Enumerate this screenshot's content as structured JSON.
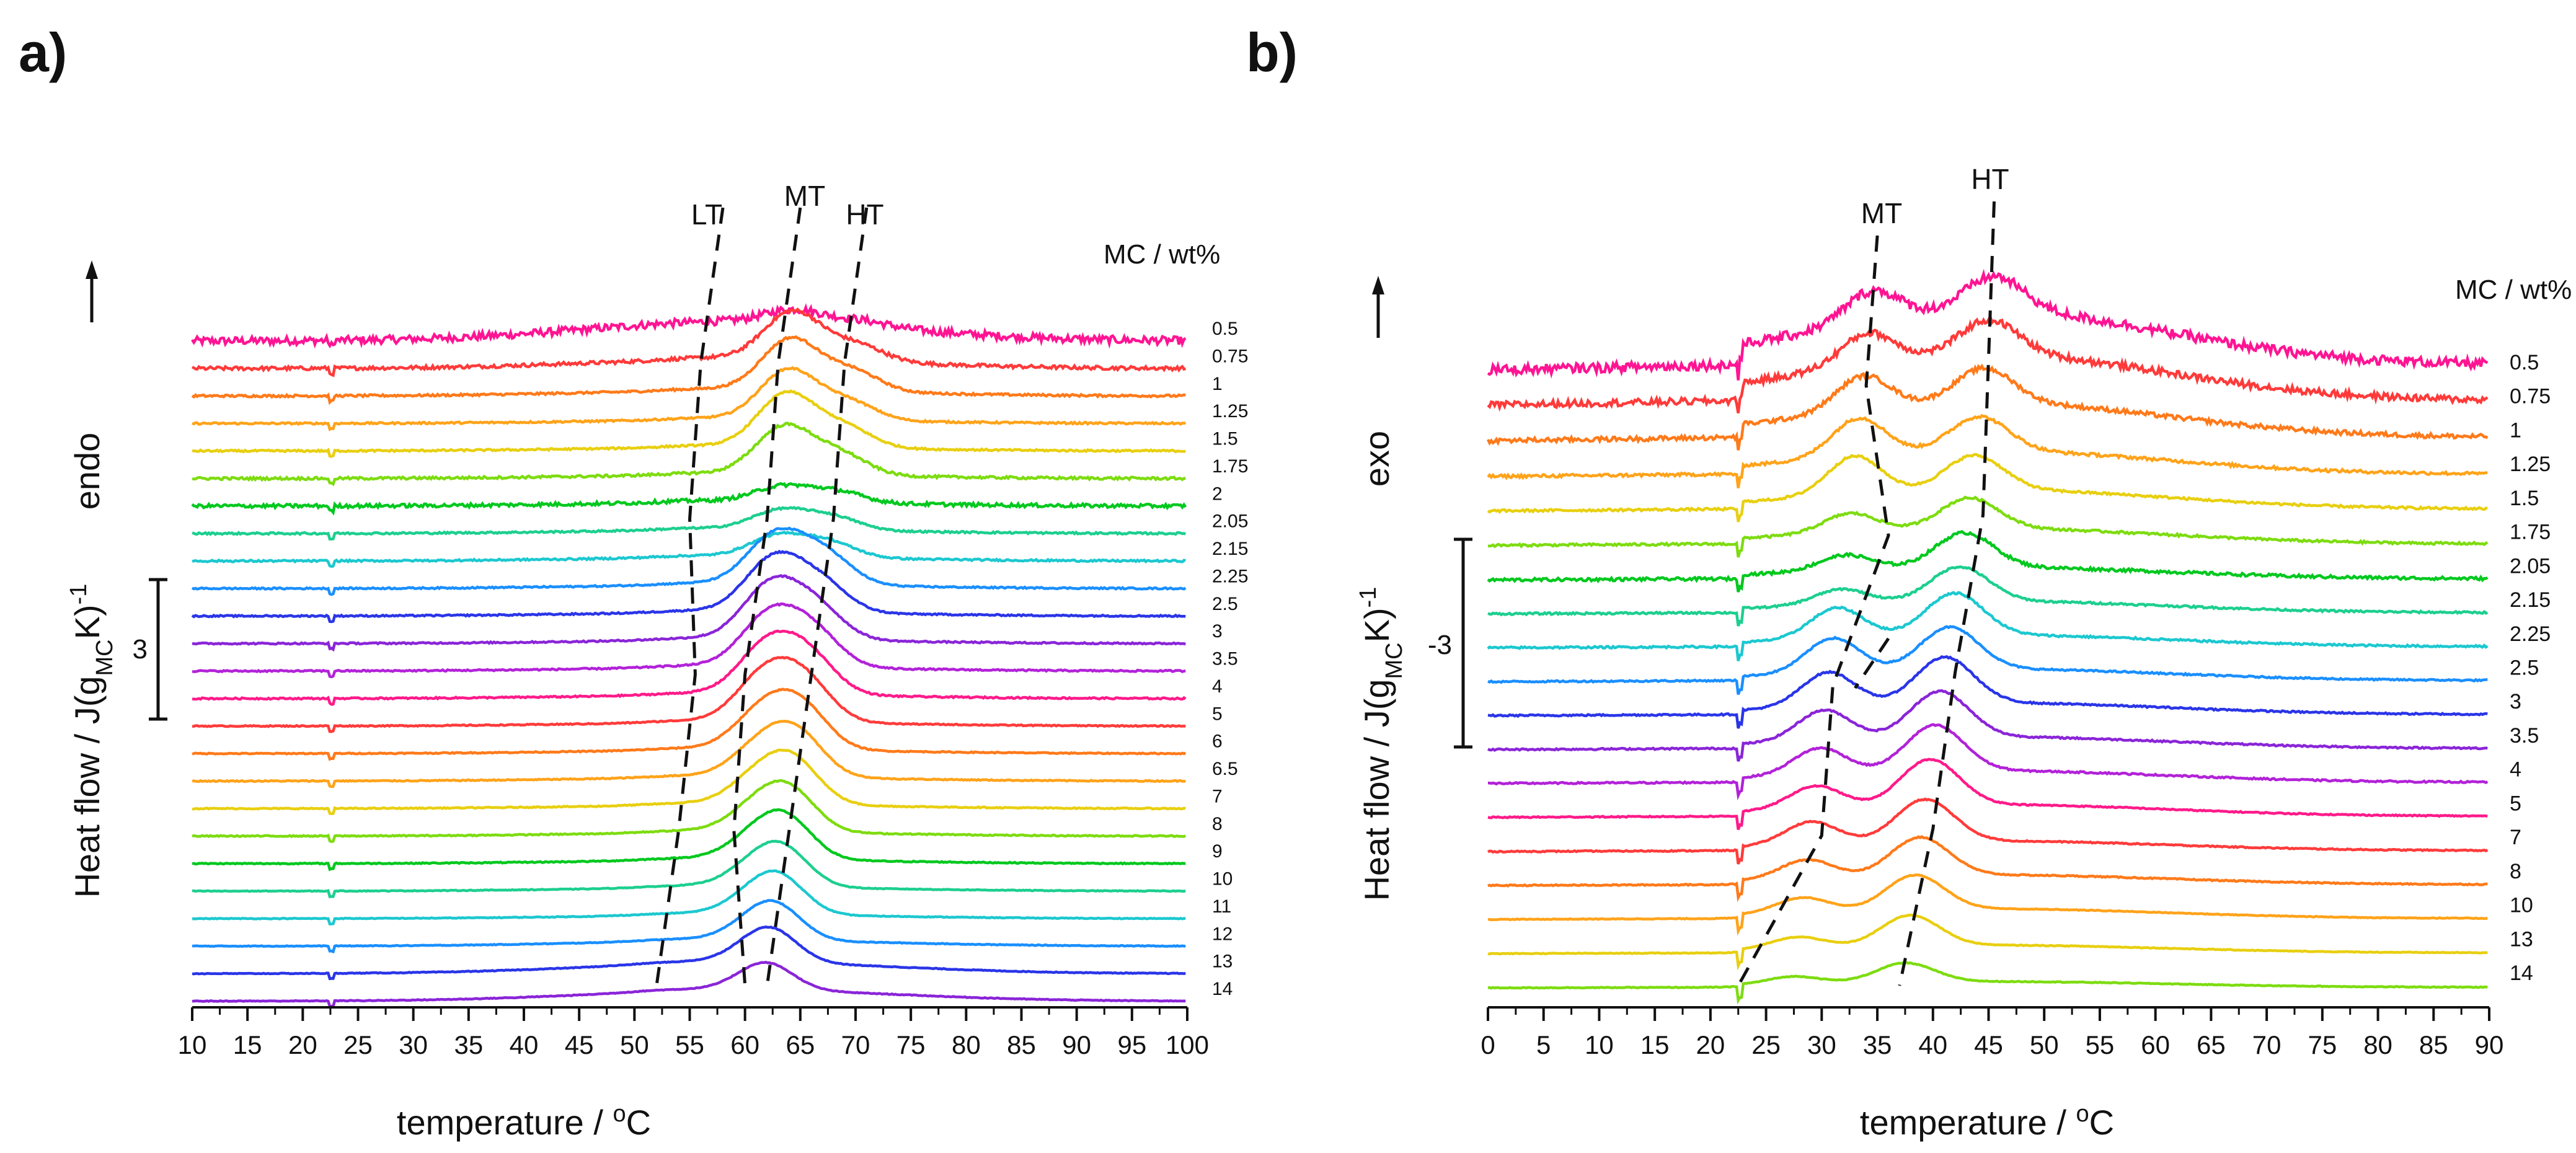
{
  "chart_data": [
    {
      "type": "line",
      "panel_label": "a)",
      "xlabel": "temperature / oC",
      "ylabel": "Heat flow / J(gMCK)-1",
      "direction_label": "endo",
      "scale_bar_label": "3",
      "legend_title": "MC / wt%",
      "xlim": [
        10,
        100
      ],
      "xticks": [
        10,
        15,
        20,
        25,
        30,
        35,
        40,
        45,
        50,
        55,
        60,
        65,
        70,
        75,
        80,
        85,
        90,
        95,
        100
      ],
      "peak_labels": [
        "LT",
        "MT",
        "HT"
      ],
      "peak_traces": [
        {
          "name": "LT",
          "x": [
            58,
            56,
            55,
            55.5,
            54,
            52
          ]
        },
        {
          "name": "MT",
          "x": [
            65,
            63,
            62,
            60,
            59,
            60
          ]
        },
        {
          "name": "HT",
          "x": [
            71,
            69,
            68,
            66,
            64,
            62
          ]
        }
      ],
      "series": [
        {
          "name": "0.5",
          "color": "#ff1493",
          "lt": 0.0,
          "mt": 0.35,
          "ht": 0.15,
          "broad": 0.55,
          "noise": 0.22
        },
        {
          "name": "0.75",
          "color": "#ff3a3a",
          "lt": 0.05,
          "mt": 1.35,
          "ht": 0.45,
          "broad": 0.25,
          "noise": 0.1
        },
        {
          "name": "1",
          "color": "#ff7a1a",
          "lt": 0.05,
          "mt": 1.45,
          "ht": 0.55,
          "broad": 0.15,
          "noise": 0.06
        },
        {
          "name": "1.25",
          "color": "#ffa31a",
          "lt": 0.05,
          "mt": 1.4,
          "ht": 0.5,
          "broad": 0.1,
          "noise": 0.05
        },
        {
          "name": "1.5",
          "color": "#e8cf10",
          "lt": 0.05,
          "mt": 1.5,
          "ht": 0.55,
          "broad": 0.1,
          "noise": 0.05
        },
        {
          "name": "1.75",
          "color": "#7ddc10",
          "lt": 0.05,
          "mt": 1.35,
          "ht": 0.55,
          "broad": 0.1,
          "noise": 0.07
        },
        {
          "name": "2",
          "color": "#00c81e",
          "lt": 0.05,
          "mt": 0.45,
          "ht": 0.3,
          "broad": 0.1,
          "noise": 0.1
        },
        {
          "name": "2.05",
          "color": "#1dcf8f",
          "lt": 0.05,
          "mt": 0.55,
          "ht": 0.35,
          "broad": 0.1,
          "noise": 0.05
        },
        {
          "name": "2.15",
          "color": "#1cc8d0",
          "lt": 0.05,
          "mt": 0.6,
          "ht": 0.4,
          "broad": 0.1,
          "noise": 0.05
        },
        {
          "name": "2.25",
          "color": "#1a8fff",
          "lt": 0.05,
          "mt": 1.4,
          "ht": 0.8,
          "broad": 0.1,
          "noise": 0.04
        },
        {
          "name": "2.5",
          "color": "#2a35e8",
          "lt": 0.05,
          "mt": 1.5,
          "ht": 0.75,
          "broad": 0.1,
          "noise": 0.04
        },
        {
          "name": "3",
          "color": "#8a25d8",
          "lt": 0.05,
          "mt": 1.55,
          "ht": 0.8,
          "broad": 0.1,
          "noise": 0.04
        },
        {
          "name": "3.5",
          "color": "#b222d8",
          "lt": 0.05,
          "mt": 1.45,
          "ht": 0.9,
          "broad": 0.1,
          "noise": 0.04
        },
        {
          "name": "4",
          "color": "#ff1a8a",
          "lt": 0.05,
          "mt": 1.4,
          "ht": 0.95,
          "broad": 0.1,
          "noise": 0.04
        },
        {
          "name": "5",
          "color": "#ff3b3b",
          "lt": 0.05,
          "mt": 1.35,
          "ht": 1.0,
          "broad": 0.1,
          "noise": 0.03
        },
        {
          "name": "6",
          "color": "#ff7a1a",
          "lt": 0.05,
          "mt": 1.1,
          "ht": 1.05,
          "broad": 0.1,
          "noise": 0.03
        },
        {
          "name": "6.5",
          "color": "#ffa31a",
          "lt": 0.05,
          "mt": 0.9,
          "ht": 1.05,
          "broad": 0.1,
          "noise": 0.03
        },
        {
          "name": "7",
          "color": "#e8cf10",
          "lt": 0.05,
          "mt": 0.8,
          "ht": 1.05,
          "broad": 0.1,
          "noise": 0.03
        },
        {
          "name": "8",
          "color": "#7ddc10",
          "lt": 0.05,
          "mt": 0.7,
          "ht": 1.0,
          "broad": 0.1,
          "noise": 0.03
        },
        {
          "name": "9",
          "color": "#00c81e",
          "lt": 0.05,
          "mt": 0.6,
          "ht": 1.0,
          "broad": 0.1,
          "noise": 0.03
        },
        {
          "name": "10",
          "color": "#1dcf8f",
          "lt": 0.05,
          "mt": 0.5,
          "ht": 0.95,
          "broad": 0.1,
          "noise": 0.02
        },
        {
          "name": "11",
          "color": "#1cc8d0",
          "lt": 0.05,
          "mt": 0.4,
          "ht": 0.95,
          "broad": 0.1,
          "noise": 0.02
        },
        {
          "name": "12",
          "color": "#1a8fff",
          "lt": 0.05,
          "mt": 0.3,
          "ht": 0.9,
          "broad": 0.15,
          "noise": 0.02
        },
        {
          "name": "13",
          "color": "#2a35e8",
          "lt": 0.05,
          "mt": 0.2,
          "ht": 0.85,
          "broad": 0.3,
          "noise": 0.02
        },
        {
          "name": "14",
          "color": "#8a25d8",
          "lt": 0.05,
          "mt": 0.1,
          "ht": 0.7,
          "broad": 0.3,
          "noise": 0.02
        }
      ]
    },
    {
      "type": "line",
      "panel_label": "b)",
      "xlabel": "temperature / oC",
      "ylabel": "Heat flow / J(gMCK)-1",
      "direction_label": "exo",
      "scale_bar_label": "-3",
      "legend_title": "MC / wt%",
      "xlim": [
        0,
        90
      ],
      "xticks": [
        0,
        5,
        10,
        15,
        20,
        25,
        30,
        35,
        40,
        45,
        50,
        55,
        60,
        65,
        70,
        75,
        80,
        85,
        90
      ],
      "peak_labels": [
        "MT",
        "HT"
      ],
      "peak_traces": [
        {
          "name": "MT",
          "x": [
            35,
            34,
            36,
            31,
            30,
            22.5
          ]
        },
        {
          "name": "HT",
          "x": [
            45.5,
            45,
            44.5,
            42,
            40,
            37
          ]
        },
        {
          "name": "MT-low",
          "x": [
            36,
            33
          ]
        }
      ],
      "series": [
        {
          "name": "0.5",
          "color": "#ff1493",
          "mt": 0.8,
          "ht": 0.9,
          "broad": 1.4,
          "noise": 0.25
        },
        {
          "name": "0.75",
          "color": "#ff3a3a",
          "mt": 0.8,
          "ht": 0.9,
          "broad": 1.2,
          "noise": 0.18
        },
        {
          "name": "1",
          "color": "#ff7a1a",
          "mt": 0.9,
          "ht": 0.9,
          "broad": 0.9,
          "noise": 0.12
        },
        {
          "name": "1.25",
          "color": "#ffa31a",
          "mt": 1.0,
          "ht": 0.9,
          "broad": 0.6,
          "noise": 0.08
        },
        {
          "name": "1.5",
          "color": "#e8cf10",
          "mt": 1.0,
          "ht": 0.9,
          "broad": 0.5,
          "noise": 0.06
        },
        {
          "name": "1.75",
          "color": "#7ddc10",
          "mt": 0.5,
          "ht": 0.8,
          "broad": 0.4,
          "noise": 0.06
        },
        {
          "name": "2.05",
          "color": "#00c81e",
          "mt": 0.4,
          "ht": 0.9,
          "broad": 0.3,
          "noise": 0.08
        },
        {
          "name": "2.15",
          "color": "#1dcf8f",
          "mt": 0.4,
          "ht": 0.9,
          "broad": 0.3,
          "noise": 0.05
        },
        {
          "name": "2.25",
          "color": "#1cc8d0",
          "mt": 0.8,
          "ht": 1.1,
          "broad": 0.3,
          "noise": 0.05
        },
        {
          "name": "2.5",
          "color": "#1a8fff",
          "mt": 0.9,
          "ht": 1.1,
          "broad": 0.3,
          "noise": 0.04
        },
        {
          "name": "3",
          "color": "#2a35e8",
          "mt": 0.9,
          "ht": 1.2,
          "broad": 0.3,
          "noise": 0.04
        },
        {
          "name": "3.5",
          "color": "#8a25d8",
          "mt": 0.8,
          "ht": 1.2,
          "broad": 0.3,
          "noise": 0.04
        },
        {
          "name": "4",
          "color": "#b222d8",
          "mt": 0.7,
          "ht": 1.2,
          "broad": 0.3,
          "noise": 0.04
        },
        {
          "name": "5",
          "color": "#ff1a8a",
          "mt": 0.6,
          "ht": 1.2,
          "broad": 0.3,
          "noise": 0.03
        },
        {
          "name": "7",
          "color": "#ff3b3b",
          "mt": 0.6,
          "ht": 1.1,
          "broad": 0.25,
          "noise": 0.03
        },
        {
          "name": "8",
          "color": "#ff7a1a",
          "mt": 0.5,
          "ht": 1.0,
          "broad": 0.25,
          "noise": 0.03
        },
        {
          "name": "10",
          "color": "#ffa31a",
          "mt": 0.4,
          "ht": 0.9,
          "broad": 0.25,
          "noise": 0.02
        },
        {
          "name": "13",
          "color": "#e8cf10",
          "mt": 0.3,
          "ht": 0.8,
          "broad": 0.2,
          "noise": 0.02
        },
        {
          "name": "14",
          "color": "#7ddc10",
          "mt": 0.2,
          "ht": 0.5,
          "broad": 0.15,
          "noise": 0.02
        }
      ]
    }
  ]
}
